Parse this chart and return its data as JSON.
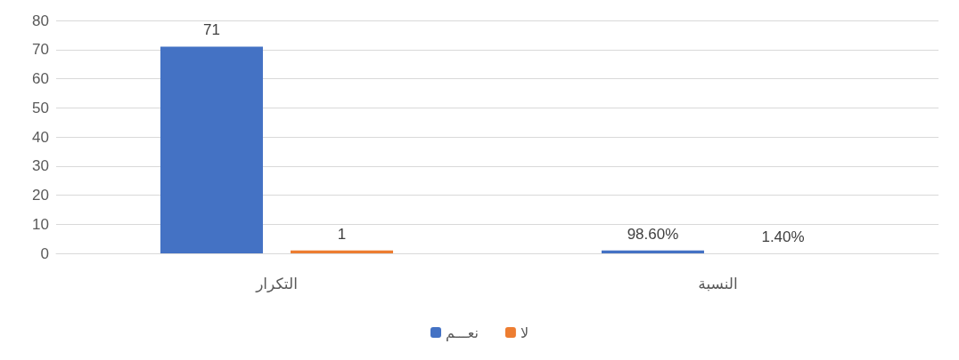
{
  "chart_data": {
    "type": "bar",
    "categories": [
      "التكرار",
      "النسبة"
    ],
    "series": [
      {
        "name": "نعـــم",
        "color": "#4472c4",
        "values": [
          71,
          0.986
        ],
        "value_labels": [
          "71",
          "98.60%"
        ]
      },
      {
        "name": "لا",
        "color": "#ed7d31",
        "values": [
          1,
          0.014
        ],
        "value_labels": [
          "1",
          "1.40%"
        ]
      }
    ],
    "ylim": [
      0,
      80
    ],
    "yticks": [
      0,
      10,
      20,
      30,
      40,
      50,
      60,
      70,
      80
    ],
    "grid": "y",
    "legend": "bottom"
  }
}
